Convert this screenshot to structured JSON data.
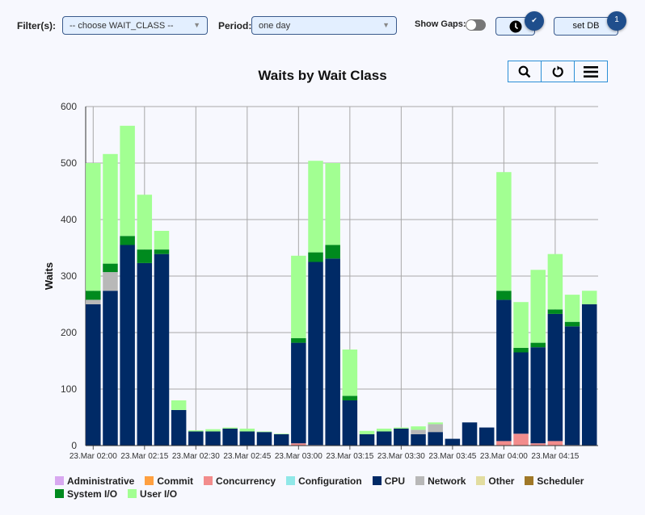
{
  "toolbar": {
    "filter_label": "Filter(s):",
    "filter_value": "-- choose WAIT_CLASS --",
    "period_label": "Period:",
    "period_value": "one day",
    "show_gaps_label": "Show Gaps:",
    "show_gaps_on": false,
    "clock_badge": "✔",
    "setdb_label": "set DB",
    "setdb_badge": "1"
  },
  "chart_tools": {
    "zoom_icon": "search-icon",
    "reset_icon": "refresh-icon",
    "menu_icon": "menu-icon"
  },
  "chart_data": {
    "type": "bar",
    "stacked": true,
    "title": "Waits by Wait Class",
    "ylabel": "Waits",
    "xlabel": "",
    "ylim": [
      0,
      600
    ],
    "yticks": [
      0,
      100,
      200,
      300,
      400,
      500,
      600
    ],
    "grid": true,
    "legend_placement": "bottom",
    "xtick_labels": [
      "23.Mar 02:00",
      "23.Mar 02:15",
      "23.Mar 02:30",
      "23.Mar 02:45",
      "23.Mar 03:00",
      "23.Mar 03:15",
      "23.Mar 03:30",
      "23.Mar 03:45",
      "23.Mar 04:00",
      "23.Mar 04:15"
    ],
    "categories": [
      "02:00",
      "02:05",
      "02:10",
      "02:15",
      "02:20",
      "02:25",
      "02:30",
      "02:35",
      "02:40",
      "02:45",
      "02:50",
      "02:55",
      "03:00",
      "03:05",
      "03:10",
      "03:15",
      "03:20",
      "03:25",
      "03:30",
      "03:35",
      "03:40",
      "03:45",
      "03:50",
      "03:55",
      "04:00",
      "04:05",
      "04:10",
      "04:15",
      "04:20",
      "04:25"
    ],
    "series": [
      {
        "name": "Administrative",
        "color": "#d8a8f0",
        "values": [
          0,
          0,
          0,
          0,
          0,
          0,
          0,
          0,
          0,
          0,
          0,
          0,
          0,
          0,
          0,
          0,
          0,
          0,
          0,
          0,
          0,
          0,
          0,
          0,
          0,
          0,
          0,
          0,
          0,
          0
        ]
      },
      {
        "name": "Commit",
        "color": "#ffa040",
        "values": [
          0,
          0,
          0,
          0,
          0,
          0,
          0,
          0,
          0,
          0,
          0,
          0,
          0,
          0,
          0,
          0,
          0,
          0,
          0,
          0,
          0,
          0,
          0,
          0,
          0,
          0,
          0,
          0,
          0,
          0
        ]
      },
      {
        "name": "Concurrency",
        "color": "#f28c8c",
        "values": [
          0,
          0,
          0,
          0,
          0,
          0,
          0,
          0,
          0,
          0,
          0,
          0,
          4,
          1,
          0,
          0,
          0,
          0,
          0,
          0,
          0,
          0,
          0,
          0,
          8,
          21,
          4,
          8,
          1,
          0
        ]
      },
      {
        "name": "Configuration",
        "color": "#90e8e8",
        "values": [
          0,
          0,
          0,
          0,
          0,
          0,
          0,
          0,
          0,
          0,
          0,
          0,
          0,
          0,
          0,
          0,
          0,
          0,
          0,
          0,
          0,
          0,
          0,
          0,
          0,
          0,
          0,
          0,
          0,
          0
        ]
      },
      {
        "name": "CPU",
        "color": "#002a66",
        "values": [
          250,
          274,
          355,
          323,
          339,
          63,
          25,
          25,
          30,
          25,
          24,
          20,
          178,
          324,
          331,
          80,
          20,
          25,
          30,
          20,
          24,
          12,
          41,
          32,
          250,
          144,
          170,
          225,
          210,
          250
        ]
      },
      {
        "name": "Network",
        "color": "#b8b8b8",
        "values": [
          8,
          33,
          0,
          0,
          0,
          0,
          0,
          0,
          0,
          0,
          0,
          0,
          0,
          0,
          0,
          0,
          0,
          0,
          0,
          8,
          14,
          0,
          0,
          0,
          0,
          0,
          0,
          0,
          0,
          0
        ]
      },
      {
        "name": "Other",
        "color": "#e2dda0",
        "values": [
          0,
          0,
          0,
          0,
          0,
          0,
          0,
          0,
          0,
          0,
          0,
          0,
          0,
          0,
          0,
          0,
          0,
          0,
          0,
          0,
          0,
          0,
          0,
          0,
          0,
          0,
          0,
          0,
          0,
          0
        ]
      },
      {
        "name": "Scheduler",
        "color": "#a07828",
        "values": [
          0,
          0,
          0,
          0,
          0,
          0,
          0,
          0,
          0,
          0,
          0,
          0,
          0,
          0,
          0,
          0,
          0,
          0,
          0,
          0,
          0,
          0,
          0,
          0,
          0,
          0,
          0,
          0,
          0,
          0
        ]
      },
      {
        "name": "System I/O",
        "color": "#008a1e",
        "values": [
          16,
          15,
          16,
          24,
          8,
          0,
          0,
          0,
          0,
          0,
          0,
          0,
          8,
          17,
          24,
          8,
          0,
          0,
          0,
          0,
          0,
          0,
          0,
          0,
          16,
          8,
          8,
          8,
          8,
          0
        ]
      },
      {
        "name": "User I/O",
        "color": "#a2ff92",
        "values": [
          226,
          194,
          195,
          97,
          33,
          17,
          2,
          4,
          2,
          5,
          1,
          1,
          146,
          162,
          145,
          82,
          6,
          5,
          2,
          6,
          3,
          0,
          0,
          0,
          210,
          81,
          129,
          98,
          48,
          24
        ]
      }
    ]
  }
}
